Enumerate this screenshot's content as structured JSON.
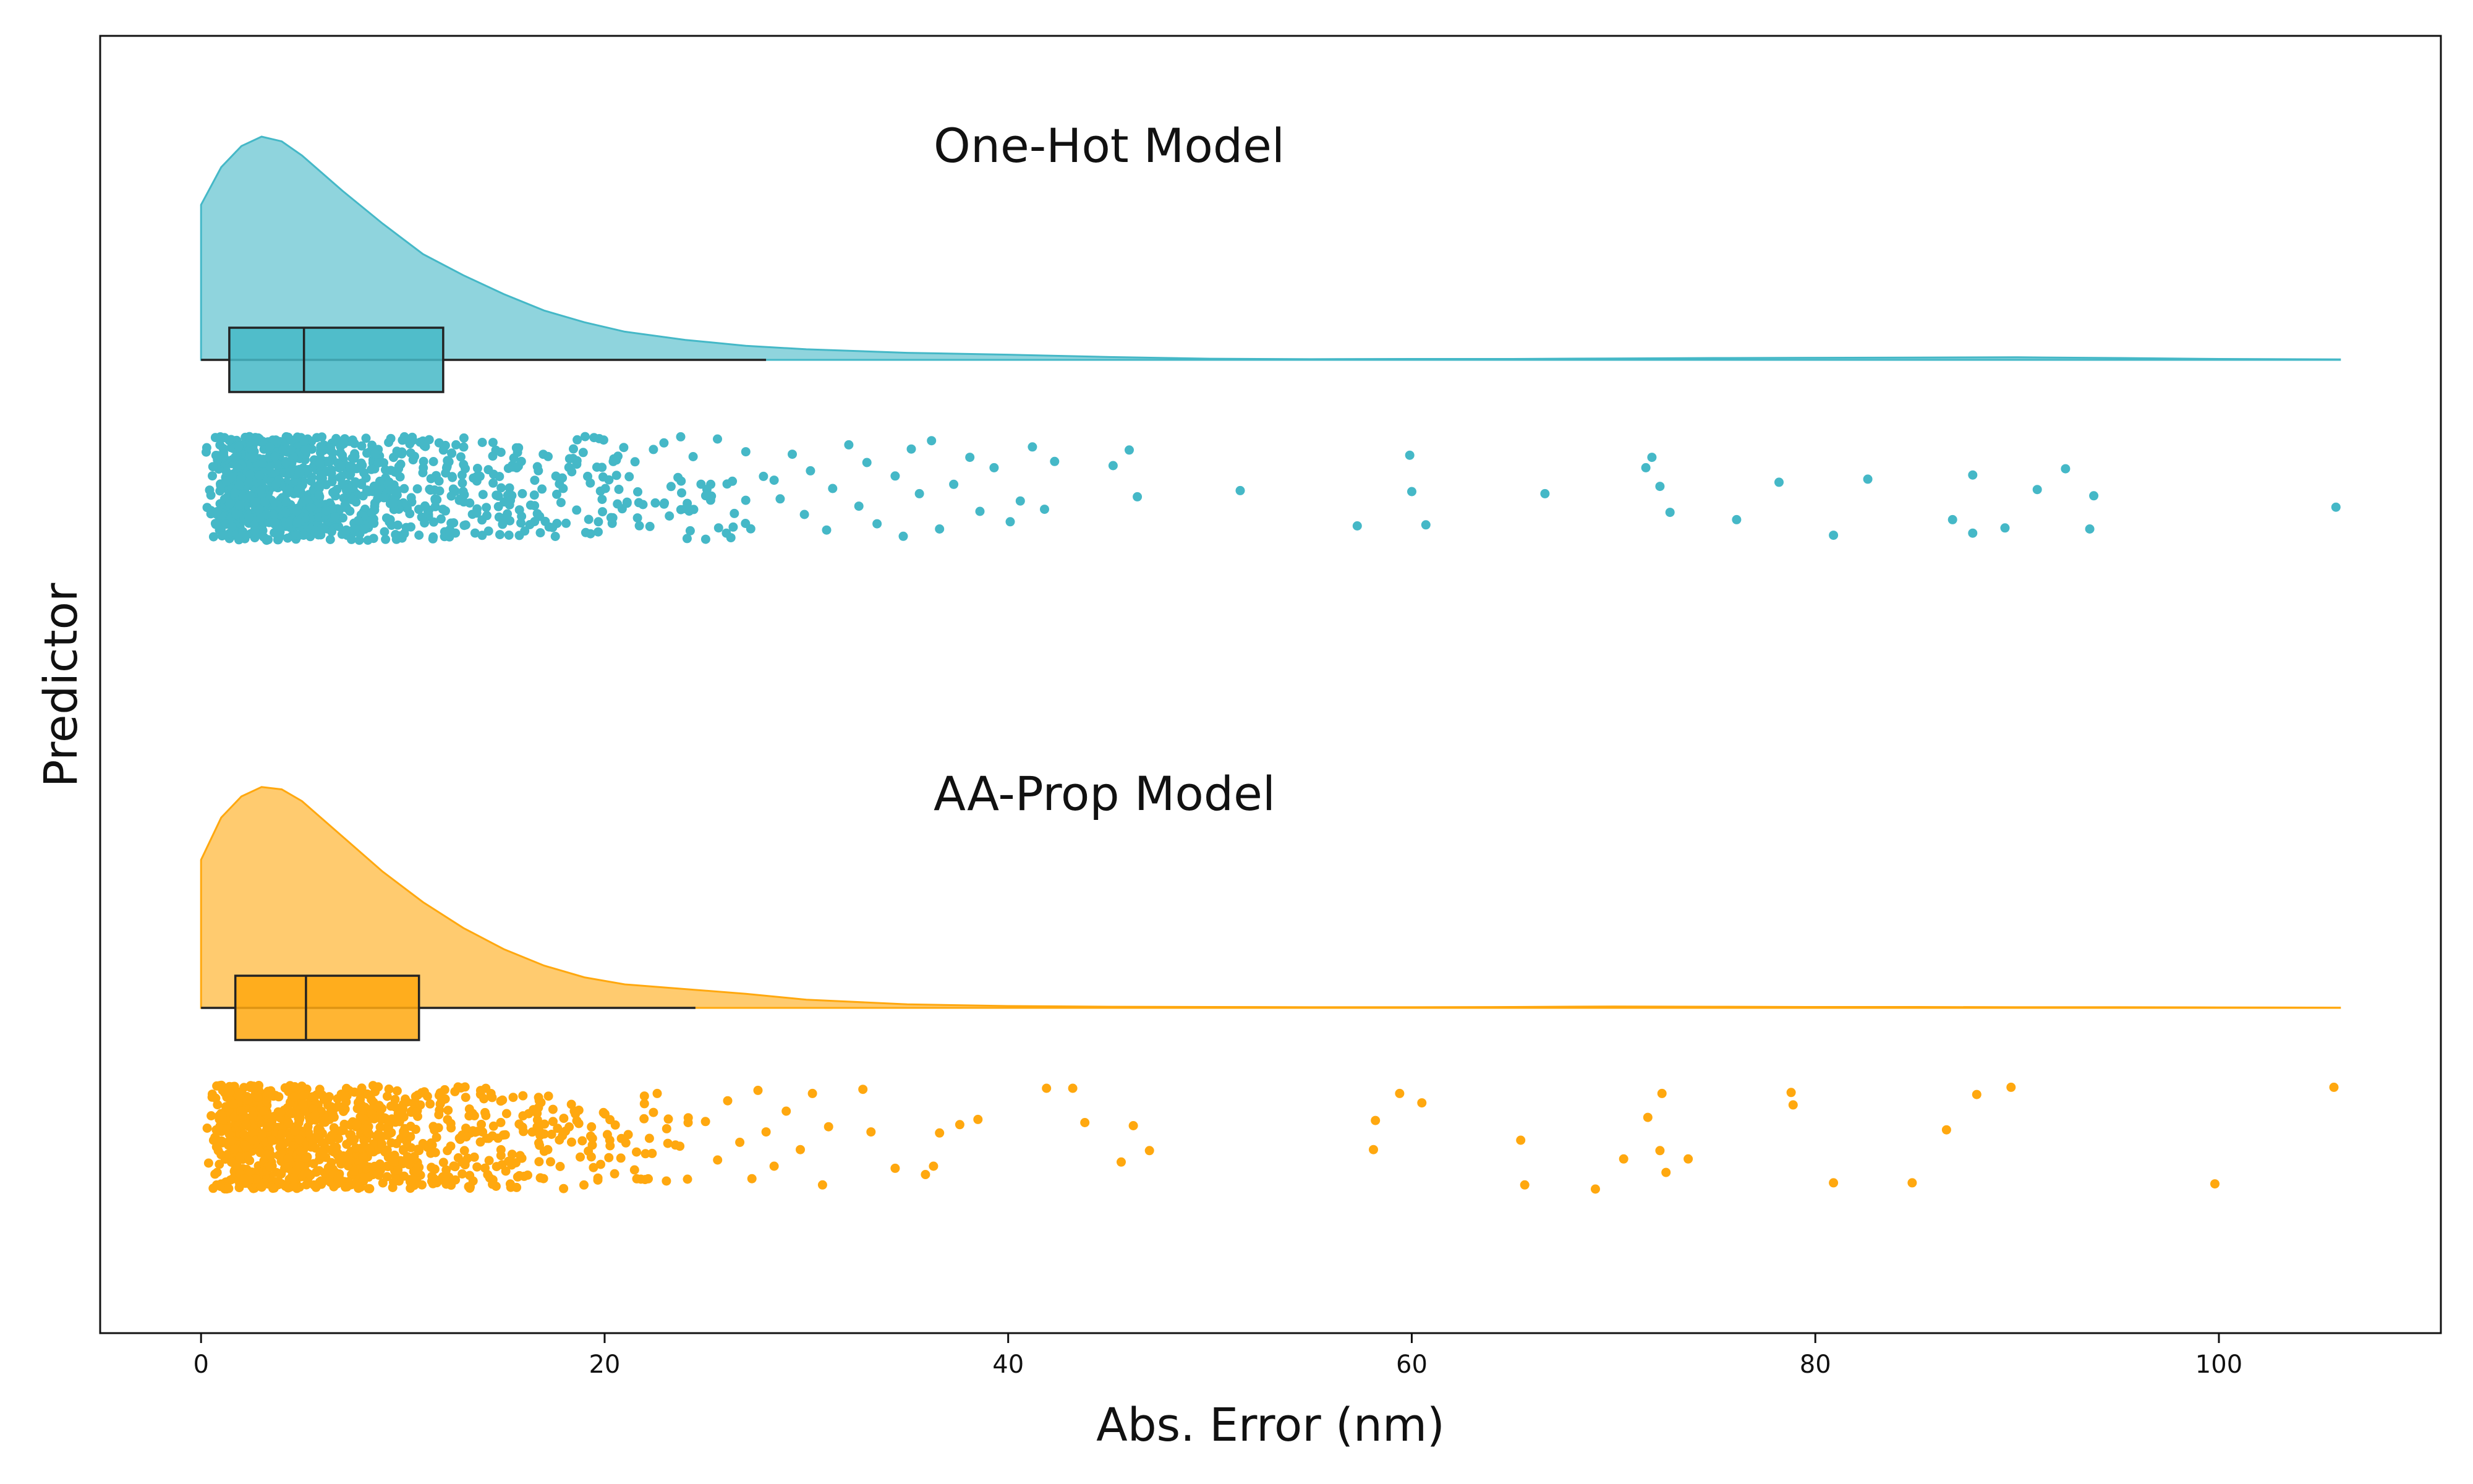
{
  "chart_data": {
    "type": "raincloud",
    "orientation": "horizontal",
    "title": "",
    "xlabel": "Abs. Error (nm)",
    "ylabel": "Predictor",
    "xlim": [
      -5,
      111
    ],
    "xticks": [
      0,
      20,
      40,
      60,
      80,
      100
    ],
    "grid": false,
    "legend": "none",
    "series": [
      {
        "name": "One-Hot Model",
        "color": "#45b8c7",
        "box": {
          "whisker_low": 0,
          "q1": 1.4,
          "median": 5.1,
          "q3": 12.0,
          "whisker_high": 28.0
        },
        "density_x_max": 106,
        "density_curve": [
          [
            0,
            0.66
          ],
          [
            1,
            0.82
          ],
          [
            2,
            0.91
          ],
          [
            3,
            0.95
          ],
          [
            4,
            0.93
          ],
          [
            5,
            0.87
          ],
          [
            7,
            0.72
          ],
          [
            9,
            0.58
          ],
          [
            11,
            0.45
          ],
          [
            13,
            0.36
          ],
          [
            15,
            0.28
          ],
          [
            17,
            0.21
          ],
          [
            19,
            0.16
          ],
          [
            21,
            0.12
          ],
          [
            24,
            0.085
          ],
          [
            27,
            0.06
          ],
          [
            30,
            0.045
          ],
          [
            35,
            0.03
          ],
          [
            40,
            0.022
          ],
          [
            45,
            0.012
          ],
          [
            50,
            0.005
          ],
          [
            55,
            0.003
          ],
          [
            60,
            0.004
          ],
          [
            65,
            0.004
          ],
          [
            70,
            0.006
          ],
          [
            75,
            0.008
          ],
          [
            80,
            0.009
          ],
          [
            85,
            0.01
          ],
          [
            90,
            0.011
          ],
          [
            95,
            0.008
          ],
          [
            100,
            0.004
          ],
          [
            106,
            0.002
          ]
        ],
        "outliers": [
          [
            28.4,
            0.42
          ],
          [
            28.7,
            0.6
          ],
          [
            29.3,
            0.17
          ],
          [
            29.9,
            0.75
          ],
          [
            30.2,
            0.33
          ],
          [
            31.0,
            0.9
          ],
          [
            31.3,
            0.5
          ],
          [
            32.1,
            0.08
          ],
          [
            32.6,
            0.67
          ],
          [
            33.0,
            0.25
          ],
          [
            33.5,
            0.84
          ],
          [
            34.4,
            0.38
          ],
          [
            34.8,
            0.96
          ],
          [
            35.2,
            0.12
          ],
          [
            35.6,
            0.55
          ],
          [
            36.2,
            0.04
          ],
          [
            36.6,
            0.89
          ],
          [
            37.3,
            0.46
          ],
          [
            38.1,
            0.2
          ],
          [
            38.6,
            0.72
          ],
          [
            39.3,
            0.3
          ],
          [
            40.1,
            0.82
          ],
          [
            40.6,
            0.62
          ],
          [
            41.2,
            0.1
          ],
          [
            41.8,
            0.7
          ],
          [
            42.3,
            0.24
          ],
          [
            45.2,
            0.28
          ],
          [
            46.0,
            0.13
          ],
          [
            46.4,
            0.58
          ],
          [
            51.5,
            0.52
          ],
          [
            57.3,
            0.86
          ],
          [
            59.9,
            0.18
          ],
          [
            60.0,
            0.53
          ],
          [
            60.7,
            0.85
          ],
          [
            66.6,
            0.55
          ],
          [
            71.6,
            0.3
          ],
          [
            71.9,
            0.2
          ],
          [
            72.3,
            0.48
          ],
          [
            72.8,
            0.73
          ],
          [
            76.1,
            0.8
          ],
          [
            78.2,
            0.44
          ],
          [
            80.9,
            0.95
          ],
          [
            82.6,
            0.41
          ],
          [
            86.8,
            0.8
          ],
          [
            87.8,
            0.37
          ],
          [
            87.8,
            0.93
          ],
          [
            89.4,
            0.88
          ],
          [
            91.0,
            0.51
          ],
          [
            92.4,
            0.31
          ],
          [
            93.6,
            0.89
          ],
          [
            93.8,
            0.57
          ],
          [
            105.8,
            0.68
          ]
        ]
      },
      {
        "name": "AA-Prop Model",
        "color": "#ffa80f",
        "box": {
          "whisker_low": 0,
          "q1": 1.7,
          "median": 5.2,
          "q3": 10.8,
          "whisker_high": 24.5
        },
        "density_x_max": 106,
        "density_curve": [
          [
            0,
            0.63
          ],
          [
            1,
            0.81
          ],
          [
            2,
            0.9
          ],
          [
            3,
            0.94
          ],
          [
            4,
            0.93
          ],
          [
            5,
            0.88
          ],
          [
            7,
            0.73
          ],
          [
            9,
            0.58
          ],
          [
            11,
            0.45
          ],
          [
            13,
            0.34
          ],
          [
            15,
            0.25
          ],
          [
            17,
            0.18
          ],
          [
            19,
            0.13
          ],
          [
            21,
            0.1
          ],
          [
            24,
            0.08
          ],
          [
            27,
            0.06
          ],
          [
            30,
            0.035
          ],
          [
            35,
            0.015
          ],
          [
            40,
            0.008
          ],
          [
            45,
            0.005
          ],
          [
            50,
            0.004
          ],
          [
            55,
            0.003
          ],
          [
            60,
            0.003
          ],
          [
            65,
            0.004
          ],
          [
            70,
            0.006
          ],
          [
            75,
            0.005
          ],
          [
            80,
            0.004
          ],
          [
            85,
            0.004
          ],
          [
            90,
            0.003
          ],
          [
            95,
            0.003
          ],
          [
            100,
            0.002
          ],
          [
            106,
            0.001
          ]
        ],
        "outliers": [
          [
            25.0,
            0.35
          ],
          [
            25.6,
            0.72
          ],
          [
            26.1,
            0.15
          ],
          [
            26.7,
            0.55
          ],
          [
            27.3,
            0.9
          ],
          [
            27.6,
            0.05
          ],
          [
            28.0,
            0.45
          ],
          [
            28.4,
            0.78
          ],
          [
            29.0,
            0.25
          ],
          [
            29.7,
            0.62
          ],
          [
            30.3,
            0.08
          ],
          [
            30.8,
            0.96
          ],
          [
            31.1,
            0.4
          ],
          [
            32.8,
            0.04
          ],
          [
            33.2,
            0.45
          ],
          [
            34.4,
            0.8
          ],
          [
            35.9,
            0.86
          ],
          [
            36.3,
            0.78
          ],
          [
            36.6,
            0.46
          ],
          [
            37.6,
            0.38
          ],
          [
            38.5,
            0.33
          ],
          [
            41.9,
            0.03
          ],
          [
            43.2,
            0.03
          ],
          [
            43.8,
            0.36
          ],
          [
            45.6,
            0.74
          ],
          [
            46.2,
            0.39
          ],
          [
            47.0,
            0.63
          ],
          [
            58.1,
            0.62
          ],
          [
            58.2,
            0.34
          ],
          [
            59.4,
            0.08
          ],
          [
            60.5,
            0.17
          ],
          [
            65.4,
            0.53
          ],
          [
            65.6,
            0.96
          ],
          [
            69.1,
            1.0
          ],
          [
            70.5,
            0.71
          ],
          [
            71.7,
            0.31
          ],
          [
            72.3,
            0.63
          ],
          [
            72.4,
            0.08
          ],
          [
            72.6,
            0.84
          ],
          [
            73.7,
            0.71
          ],
          [
            78.8,
            0.07
          ],
          [
            78.9,
            0.19
          ],
          [
            80.9,
            0.94
          ],
          [
            84.8,
            0.94
          ],
          [
            86.5,
            0.43
          ],
          [
            88.0,
            0.09
          ],
          [
            89.7,
            0.02
          ],
          [
            99.8,
            0.95
          ],
          [
            105.7,
            0.02
          ]
        ]
      }
    ]
  }
}
